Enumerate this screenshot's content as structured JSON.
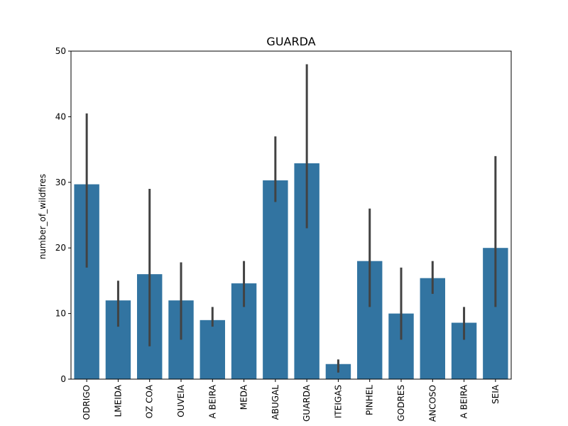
{
  "chart_data": {
    "type": "bar",
    "title": "GUARDA",
    "xlabel": "",
    "ylabel": "number_of_wildfires",
    "ylim": [
      0,
      50
    ],
    "yticks": [
      0,
      10,
      20,
      30,
      40,
      50
    ],
    "grid": false,
    "bar_color": "#3274a1",
    "errorbar_color": "#424242",
    "categories": [
      "ODRIGO",
      "LMEIDA",
      "OZ COA",
      "OUVEIA",
      "A BEIRA",
      "MEDA",
      "ABUGAL",
      "GUARDA",
      "ITEIGAS",
      "PINHEL",
      "GODRES",
      "ANCOSO",
      "A BEIRA",
      "SEIA"
    ],
    "values": [
      29.7,
      12.0,
      16.0,
      12.0,
      9.0,
      14.6,
      30.3,
      32.9,
      2.3,
      18.0,
      10.0,
      15.4,
      8.6,
      20.0
    ],
    "error_low": [
      17.0,
      8.0,
      5.0,
      6.0,
      8.0,
      11.0,
      27.0,
      23.0,
      1.0,
      11.0,
      6.0,
      13.0,
      6.0,
      11.0
    ],
    "error_high": [
      40.5,
      15.0,
      29.0,
      17.8,
      11.0,
      18.0,
      37.0,
      48.0,
      3.0,
      26.0,
      17.0,
      18.0,
      11.0,
      34.0
    ]
  }
}
